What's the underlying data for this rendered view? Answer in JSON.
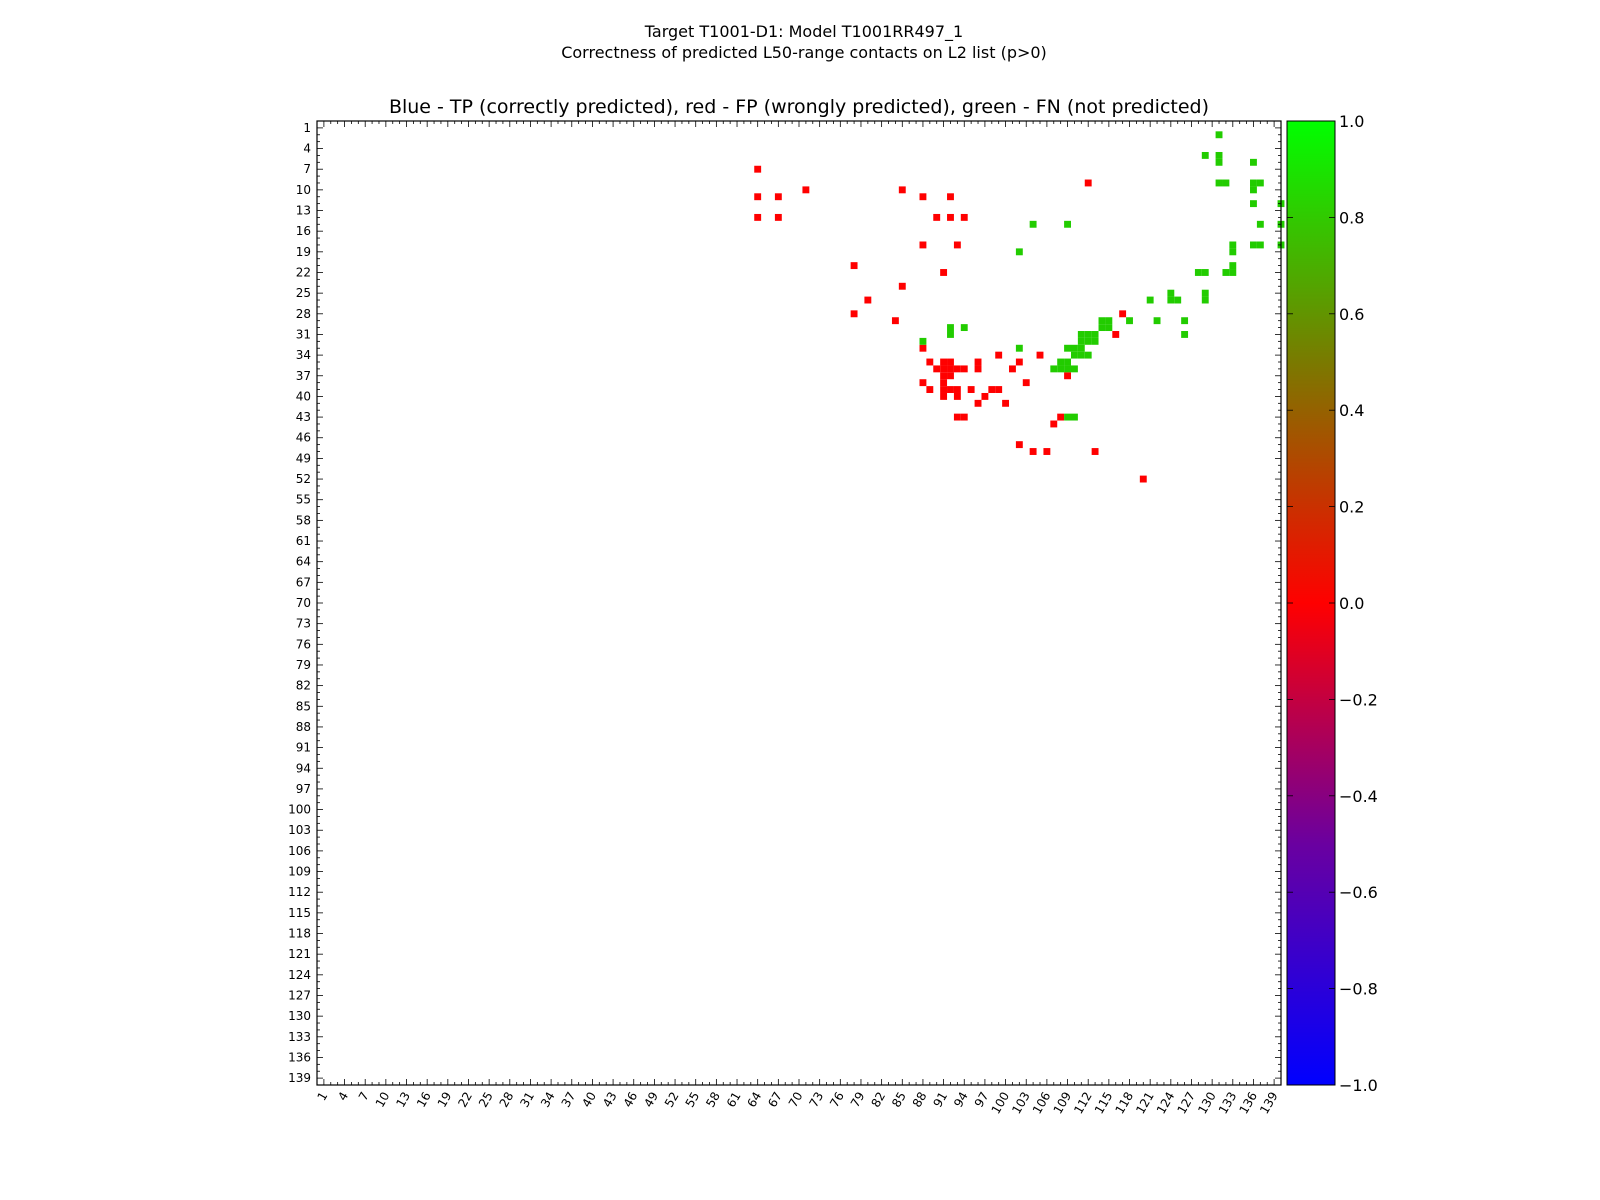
{
  "chart_data": {
    "type": "heatmap",
    "suptitle_line1": "Target T1001-D1: Model T1001RR497_1",
    "suptitle_line2": "Correctness of predicted L50-range contacts on L2 list (p>0)",
    "title": "Blue - TP (correctly predicted), red - FP (wrongly predicted), green - FN (not predicted)",
    "xlabel": "",
    "ylabel": "",
    "residue_range": [
      1,
      139
    ],
    "tick_labels": [
      "1",
      "4",
      "7",
      "10",
      "13",
      "16",
      "19",
      "22",
      "25",
      "28",
      "31",
      "34",
      "37",
      "40",
      "43",
      "46",
      "49",
      "52",
      "55",
      "58",
      "61",
      "64",
      "67",
      "70",
      "73",
      "76",
      "79",
      "82",
      "85",
      "88",
      "91",
      "94",
      "97",
      "100",
      "103",
      "106",
      "109",
      "112",
      "115",
      "118",
      "121",
      "124",
      "127",
      "130",
      "133",
      "136",
      "139"
    ],
    "colorbar": {
      "min": -1.0,
      "max": 1.0,
      "ticks": [
        "1.0",
        "0.8",
        "0.6",
        "0.4",
        "0.2",
        "0.0",
        "−0.2",
        "−0.4",
        "−0.6",
        "−0.8",
        "−1.0"
      ],
      "colors": {
        "neg": "#0000ff",
        "mid_low": "#800080",
        "zero": "#ff0000",
        "mid_high": "#808000",
        "pos": "#00ff00"
      }
    },
    "colors": {
      "fp": "#ff0000",
      "fn": "#22cc00"
    },
    "series": [
      {
        "name": "FP",
        "value": 0.0,
        "points": [
          [
            64,
            7
          ],
          [
            64,
            11
          ],
          [
            64,
            14
          ],
          [
            67,
            11
          ],
          [
            67,
            14
          ],
          [
            71,
            10
          ],
          [
            85,
            10
          ],
          [
            88,
            11
          ],
          [
            92,
            11
          ],
          [
            90,
            14
          ],
          [
            92,
            14
          ],
          [
            94,
            14
          ],
          [
            88,
            18
          ],
          [
            93,
            18
          ],
          [
            78,
            21
          ],
          [
            91,
            22
          ],
          [
            85,
            24
          ],
          [
            80,
            26
          ],
          [
            78,
            28
          ],
          [
            84,
            29
          ],
          [
            117,
            28
          ],
          [
            116,
            31
          ],
          [
            112,
            9
          ],
          [
            88,
            33
          ],
          [
            89,
            35
          ],
          [
            91,
            35
          ],
          [
            92,
            35
          ],
          [
            90,
            36
          ],
          [
            91,
            36
          ],
          [
            92,
            36
          ],
          [
            93,
            36
          ],
          [
            91,
            37
          ],
          [
            92,
            37
          ],
          [
            88,
            38
          ],
          [
            91,
            38
          ],
          [
            89,
            39
          ],
          [
            91,
            39
          ],
          [
            92,
            39
          ],
          [
            93,
            39
          ],
          [
            91,
            40
          ],
          [
            93,
            40
          ],
          [
            95,
            39
          ],
          [
            98,
            39
          ],
          [
            99,
            39
          ],
          [
            97,
            40
          ],
          [
            96,
            41
          ],
          [
            100,
            41
          ],
          [
            93,
            43
          ],
          [
            94,
            43
          ],
          [
            94,
            36
          ],
          [
            96,
            35
          ],
          [
            96,
            36
          ],
          [
            99,
            34
          ],
          [
            102,
            35
          ],
          [
            101,
            36
          ],
          [
            103,
            38
          ],
          [
            105,
            34
          ],
          [
            109,
            37
          ],
          [
            108,
            43
          ],
          [
            107,
            44
          ],
          [
            102,
            47
          ],
          [
            104,
            48
          ],
          [
            106,
            48
          ],
          [
            113,
            48
          ],
          [
            120,
            52
          ]
        ]
      },
      {
        "name": "FN",
        "value": 1.0,
        "points": [
          [
            131,
            2
          ],
          [
            129,
            5
          ],
          [
            131,
            5
          ],
          [
            131,
            6
          ],
          [
            136,
            6
          ],
          [
            131,
            9
          ],
          [
            132,
            9
          ],
          [
            136,
            9
          ],
          [
            137,
            9
          ],
          [
            136,
            10
          ],
          [
            136,
            12
          ],
          [
            137,
            15
          ],
          [
            140,
            12
          ],
          [
            140,
            15
          ],
          [
            140,
            18
          ],
          [
            104,
            15
          ],
          [
            109,
            15
          ],
          [
            133,
            18
          ],
          [
            136,
            18
          ],
          [
            137,
            18
          ],
          [
            133,
            19
          ],
          [
            102,
            19
          ],
          [
            128,
            22
          ],
          [
            129,
            22
          ],
          [
            132,
            22
          ],
          [
            133,
            22
          ],
          [
            133,
            21
          ],
          [
            121,
            26
          ],
          [
            124,
            25
          ],
          [
            124,
            26
          ],
          [
            125,
            26
          ],
          [
            129,
            25
          ],
          [
            129,
            26
          ],
          [
            114,
            29
          ],
          [
            115,
            29
          ],
          [
            114,
            30
          ],
          [
            115,
            30
          ],
          [
            118,
            29
          ],
          [
            122,
            29
          ],
          [
            126,
            29
          ],
          [
            126,
            31
          ],
          [
            111,
            31
          ],
          [
            112,
            31
          ],
          [
            113,
            31
          ],
          [
            111,
            32
          ],
          [
            112,
            32
          ],
          [
            113,
            32
          ],
          [
            109,
            33
          ],
          [
            110,
            33
          ],
          [
            111,
            33
          ],
          [
            110,
            34
          ],
          [
            111,
            34
          ],
          [
            112,
            34
          ],
          [
            108,
            35
          ],
          [
            109,
            35
          ],
          [
            107,
            36
          ],
          [
            108,
            36
          ],
          [
            109,
            36
          ],
          [
            110,
            36
          ],
          [
            88,
            32
          ],
          [
            92,
            31
          ],
          [
            92,
            30
          ],
          [
            94,
            30
          ],
          [
            102,
            33
          ],
          [
            109,
            43
          ],
          [
            110,
            43
          ]
        ]
      }
    ]
  }
}
